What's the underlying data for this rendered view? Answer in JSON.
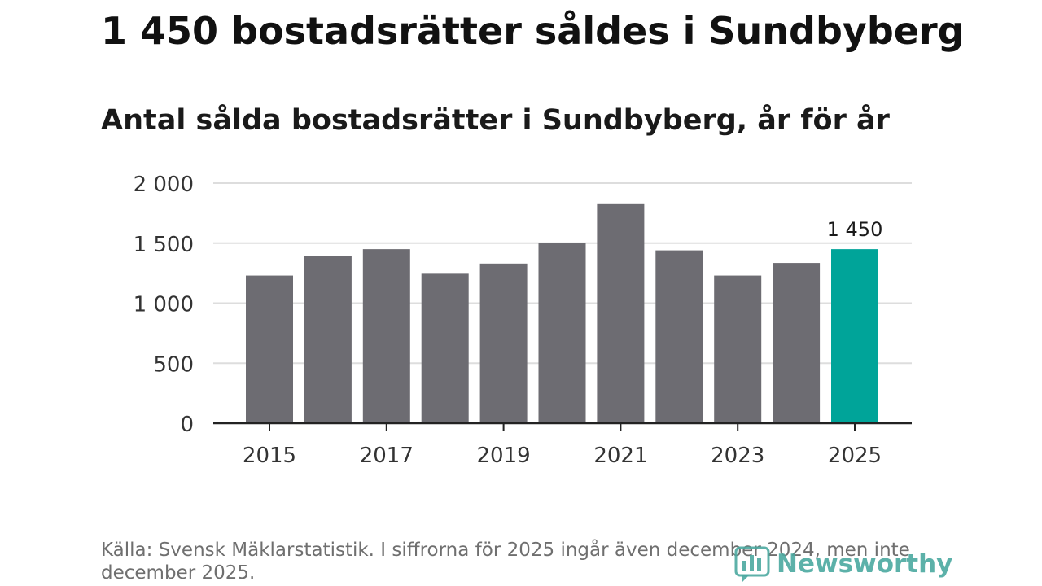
{
  "headline": "1 450 bostadsrätter såldes i Sundbyberg",
  "colors": {
    "bar": "#6d6c72",
    "highlight": "#00a499",
    "grid": "#dddddd",
    "axis": "#222222",
    "brand": "#4ba9a0"
  },
  "chart_data": {
    "type": "bar",
    "title": "Antal sålda bostadsrätter i Sundbyberg, år för år",
    "categories": [
      "2015",
      "2016",
      "2017",
      "2018",
      "2019",
      "2020",
      "2021",
      "2022",
      "2023",
      "2024",
      "2025"
    ],
    "values": [
      1230,
      1395,
      1450,
      1245,
      1330,
      1505,
      1825,
      1440,
      1230,
      1335,
      1450
    ],
    "highlight_index": 10,
    "highlight_label": "1 450",
    "xtick_labels": [
      "2015",
      "",
      "2017",
      "",
      "2019",
      "",
      "2021",
      "",
      "2023",
      "",
      "2025"
    ],
    "yticks": [
      0,
      500,
      1000,
      1500,
      2000
    ],
    "ytick_labels": [
      "0",
      "500",
      "1 000",
      "1 500",
      "2 000"
    ],
    "ylim": [
      0,
      2000
    ],
    "xlabel": "",
    "ylabel": "",
    "grid": true
  },
  "footer": {
    "source": "Källa: Svensk Mäklarstatistik. I siffrorna för 2025 ingår även december 2024, men inte december 2025.",
    "brand": "Newsworthy",
    "brand_icon": "newsworthy-logo-icon"
  }
}
